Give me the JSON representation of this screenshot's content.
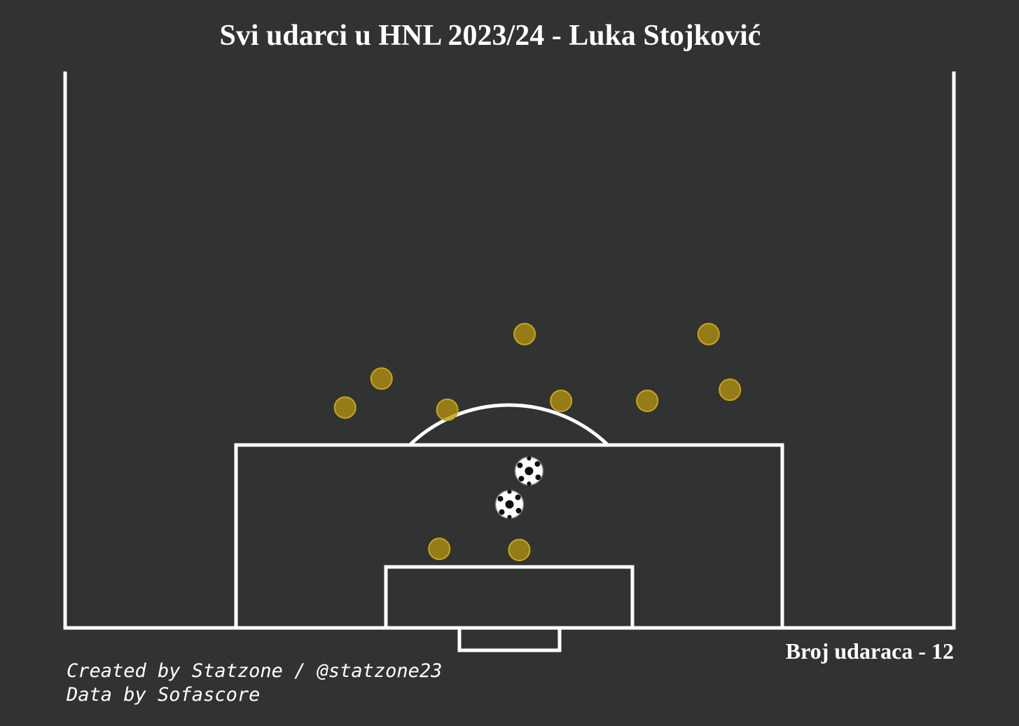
{
  "chart_data": {
    "type": "scatter",
    "title": "Svi udarci u HNL 2023/24 - Luka Stojković",
    "annotation": "Broj udaraca - 12",
    "credits": [
      "Created by Statzone / @statzone23",
      "Data by Sofascore"
    ],
    "xlim": [
      0,
      100
    ],
    "ylim": [
      0,
      50
    ],
    "series": [
      {
        "color": "#b8960f",
        "marker": "circle",
        "x": [
          31.5,
          35.6,
          43.0,
          51.7,
          55.8,
          65.5,
          72.4,
          74.8,
          42.1,
          51.1
        ],
        "values": [
          19.8,
          22.4,
          19.6,
          26.4,
          20.4,
          20.4,
          26.4,
          21.4,
          7.1,
          7.0
        ]
      },
      {
        "color": "#ffffff",
        "marker": "ball",
        "x": [
          52.2,
          50.0
        ],
        "values": [
          14.1,
          11.1
        ]
      }
    ]
  }
}
